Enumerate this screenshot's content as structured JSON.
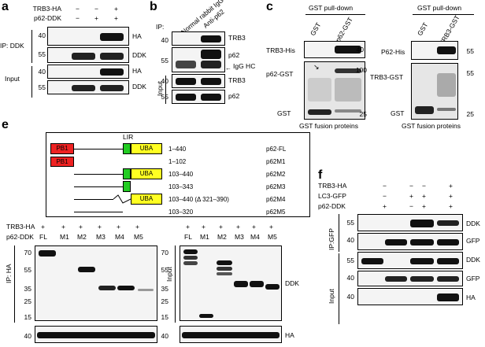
{
  "panels": {
    "a": {
      "letter": "a",
      "rows": [
        {
          "label": "TRB3-HA",
          "signs": [
            "−",
            "−",
            "+"
          ]
        },
        {
          "label": "p62-DDK",
          "signs": [
            "−",
            "+",
            "+"
          ]
        }
      ],
      "ip_label": "IP: DDK",
      "input_label": "Input",
      "mw": [
        "40",
        "55",
        "40",
        "55"
      ],
      "blot_labels": [
        "HA",
        "DDK",
        "HA",
        "DDK"
      ]
    },
    "b": {
      "letter": "b",
      "ip_label": "IP:",
      "col_headers": [
        "Normal rabbit IgG",
        "Anti-p62"
      ],
      "input_label": "Input",
      "mw": [
        "40",
        "55",
        "40",
        "55"
      ],
      "blot_labels": [
        "TRB3",
        "p62",
        "IgG HC",
        "TRB3",
        "p62"
      ]
    },
    "c": {
      "letter": "c",
      "left": {
        "header": "GST pull-down",
        "cols": [
          "GST",
          "p62-GST"
        ],
        "row_labels": [
          "TRB3-His",
          "p62-GST",
          "GST"
        ],
        "mw": [
          "40",
          "100",
          "25"
        ],
        "caption": "GST fusion proteins"
      },
      "right": {
        "header": "GST pull-down",
        "cols": [
          "GST",
          "TRB3-GST"
        ],
        "row_labels": [
          "P62-His",
          "TRB3-GST",
          "GST"
        ],
        "mw": [
          "55",
          "55",
          "25"
        ],
        "caption": "GST fusion proteins"
      }
    },
    "e": {
      "letter": "e",
      "lir_label": "LIR",
      "pb1_label": "PB1",
      "uba_label": "UBA",
      "constructs": [
        {
          "range": "1–440",
          "name": "p62-FL"
        },
        {
          "range": "1–102",
          "name": "p62M1"
        },
        {
          "range": "103–440",
          "name": "p62M2"
        },
        {
          "range": "103–343",
          "name": "p62M3"
        },
        {
          "range": "103–440 (Δ 321–390)",
          "name": "p62M4"
        },
        {
          "range": "103–320",
          "name": "p62M5"
        }
      ],
      "trb3_label": "TRB3-HA",
      "p62_label": "p62-DDK",
      "trb3_signs": [
        "+",
        "+",
        "+",
        "+",
        "+",
        "+"
      ],
      "lanes": [
        "FL",
        "M1",
        "M2",
        "M3",
        "M4",
        "M5"
      ],
      "ip_label": "IP: HA",
      "input_label": "Input",
      "mw": [
        "70",
        "55",
        "35",
        "25",
        "15",
        "40"
      ],
      "ddk_label": "DDK",
      "ha_label": "HA"
    },
    "f": {
      "letter": "f",
      "rows": [
        {
          "label": "TRB3-HA",
          "signs": [
            "−",
            "−",
            "−",
            "+"
          ]
        },
        {
          "label": "LC3-GFP",
          "signs": [
            "−",
            "+",
            "+",
            "+"
          ]
        },
        {
          "label": "p62-DDK",
          "signs": [
            "+",
            "−",
            "+",
            "+"
          ]
        }
      ],
      "ip_label": "IP:GFP",
      "input_label": "Input",
      "mw": [
        "55",
        "40",
        "55",
        "40",
        "40"
      ],
      "blot_labels": [
        "DDK",
        "GFP",
        "DDK",
        "GFP",
        "HA"
      ]
    }
  }
}
